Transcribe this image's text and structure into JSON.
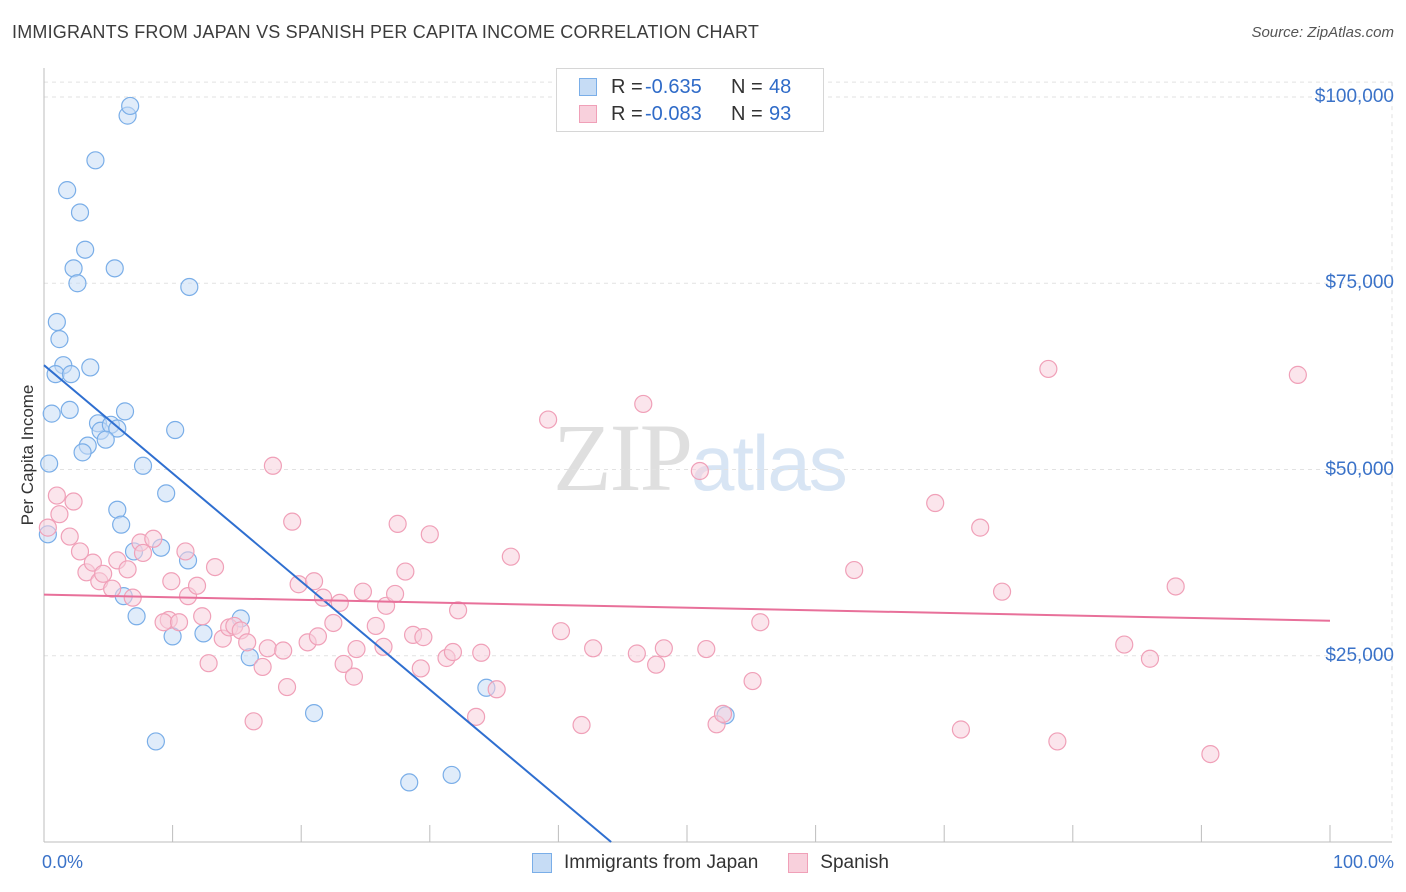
{
  "title": "IMMIGRANTS FROM JAPAN VS SPANISH PER CAPITA INCOME CORRELATION CHART",
  "source": "Source: ZipAtlas.com",
  "watermark": {
    "zip": "ZIP",
    "atlas": "atlas"
  },
  "legend": {
    "rows": [
      {
        "r_label": "R =",
        "r_value": "-0.635",
        "n_label": "N =",
        "n_value": "48"
      },
      {
        "r_label": "R =",
        "r_value": "-0.083",
        "n_label": "N =",
        "n_value": "93"
      }
    ]
  },
  "colors": {
    "japan": "#7aaee8",
    "japan_fill": "#c6dcf5",
    "japan_line": "#2f6fd0",
    "spanish": "#f0a0b8",
    "spanish_fill": "#f8d0dc",
    "spanish_line": "#e8709a",
    "grid": "#e2e2e2",
    "axis_text": "#3a72c8"
  },
  "chart_data": {
    "type": "scatter",
    "xlabel": "",
    "ylabel": "Per Capita Income",
    "xlim": [
      0,
      100
    ],
    "ylim": [
      0,
      102000
    ],
    "x_tick_labels": [
      "0.0%",
      "100.0%"
    ],
    "y_ticks": [
      25000,
      50000,
      75000,
      100000
    ],
    "y_tick_labels": [
      "$25,000",
      "$50,000",
      "$75,000",
      "$100,000"
    ],
    "grid": true,
    "legend_position": "top-center",
    "series": [
      {
        "name": "Immigrants from Japan",
        "color": "#7aaee8",
        "trend": {
          "x": [
            0.0,
            44.1
          ],
          "y": [
            64000,
            0
          ]
        },
        "points": [
          {
            "x": 6.5,
            "y": 97500
          },
          {
            "x": 6.7,
            "y": 98800
          },
          {
            "x": 4.0,
            "y": 91500
          },
          {
            "x": 1.8,
            "y": 87500
          },
          {
            "x": 2.8,
            "y": 84500
          },
          {
            "x": 3.2,
            "y": 79500
          },
          {
            "x": 2.3,
            "y": 77000
          },
          {
            "x": 5.5,
            "y": 77000
          },
          {
            "x": 2.6,
            "y": 75000
          },
          {
            "x": 11.3,
            "y": 74500
          },
          {
            "x": 1.0,
            "y": 69800
          },
          {
            "x": 1.2,
            "y": 67500
          },
          {
            "x": 1.5,
            "y": 64000
          },
          {
            "x": 3.6,
            "y": 63700
          },
          {
            "x": 0.9,
            "y": 62800
          },
          {
            "x": 2.1,
            "y": 62800
          },
          {
            "x": 0.6,
            "y": 57500
          },
          {
            "x": 2.0,
            "y": 58000
          },
          {
            "x": 6.3,
            "y": 57800
          },
          {
            "x": 4.2,
            "y": 56200
          },
          {
            "x": 4.4,
            "y": 55200
          },
          {
            "x": 5.2,
            "y": 56000
          },
          {
            "x": 5.7,
            "y": 55500
          },
          {
            "x": 10.2,
            "y": 55300
          },
          {
            "x": 3.4,
            "y": 53200
          },
          {
            "x": 4.8,
            "y": 54000
          },
          {
            "x": 3.0,
            "y": 52300
          },
          {
            "x": 0.4,
            "y": 50800
          },
          {
            "x": 7.7,
            "y": 50500
          },
          {
            "x": 9.5,
            "y": 46800
          },
          {
            "x": 5.7,
            "y": 44600
          },
          {
            "x": 6.0,
            "y": 42600
          },
          {
            "x": 0.3,
            "y": 41300
          },
          {
            "x": 7.0,
            "y": 39000
          },
          {
            "x": 9.1,
            "y": 39500
          },
          {
            "x": 11.2,
            "y": 37800
          },
          {
            "x": 6.2,
            "y": 33000
          },
          {
            "x": 7.2,
            "y": 30300
          },
          {
            "x": 15.3,
            "y": 30000
          },
          {
            "x": 10.0,
            "y": 27600
          },
          {
            "x": 12.4,
            "y": 28000
          },
          {
            "x": 16.0,
            "y": 24800
          },
          {
            "x": 21.0,
            "y": 17300
          },
          {
            "x": 34.4,
            "y": 20700
          },
          {
            "x": 8.7,
            "y": 13500
          },
          {
            "x": 28.4,
            "y": 8000
          },
          {
            "x": 31.7,
            "y": 9000
          },
          {
            "x": 53.0,
            "y": 17000
          }
        ]
      },
      {
        "name": "Spanish",
        "color": "#f0a0b8",
        "trend": {
          "x": [
            0.0,
            100.0
          ],
          "y": [
            33200,
            29700
          ]
        },
        "points": [
          {
            "x": 0.3,
            "y": 42200
          },
          {
            "x": 1.0,
            "y": 46500
          },
          {
            "x": 1.2,
            "y": 44000
          },
          {
            "x": 2.3,
            "y": 45700
          },
          {
            "x": 2.0,
            "y": 41000
          },
          {
            "x": 2.8,
            "y": 39000
          },
          {
            "x": 3.3,
            "y": 36200
          },
          {
            "x": 3.8,
            "y": 37500
          },
          {
            "x": 4.3,
            "y": 35000
          },
          {
            "x": 4.6,
            "y": 36000
          },
          {
            "x": 5.3,
            "y": 34000
          },
          {
            "x": 5.7,
            "y": 37800
          },
          {
            "x": 6.5,
            "y": 36600
          },
          {
            "x": 6.9,
            "y": 32800
          },
          {
            "x": 7.5,
            "y": 40200
          },
          {
            "x": 7.7,
            "y": 38800
          },
          {
            "x": 8.5,
            "y": 40700
          },
          {
            "x": 9.7,
            "y": 29800
          },
          {
            "x": 9.3,
            "y": 29500
          },
          {
            "x": 9.9,
            "y": 35000
          },
          {
            "x": 10.5,
            "y": 29500
          },
          {
            "x": 11.0,
            "y": 39000
          },
          {
            "x": 11.2,
            "y": 33000
          },
          {
            "x": 11.9,
            "y": 34400
          },
          {
            "x": 12.3,
            "y": 30300
          },
          {
            "x": 12.8,
            "y": 24000
          },
          {
            "x": 13.3,
            "y": 36900
          },
          {
            "x": 13.9,
            "y": 27300
          },
          {
            "x": 14.4,
            "y": 28800
          },
          {
            "x": 14.8,
            "y": 29000
          },
          {
            "x": 15.3,
            "y": 28400
          },
          {
            "x": 15.8,
            "y": 26800
          },
          {
            "x": 16.3,
            "y": 16200
          },
          {
            "x": 17.0,
            "y": 23500
          },
          {
            "x": 17.4,
            "y": 26000
          },
          {
            "x": 17.8,
            "y": 50500
          },
          {
            "x": 18.6,
            "y": 25700
          },
          {
            "x": 18.9,
            "y": 20800
          },
          {
            "x": 19.3,
            "y": 43000
          },
          {
            "x": 19.8,
            "y": 34600
          },
          {
            "x": 20.5,
            "y": 26800
          },
          {
            "x": 21.0,
            "y": 35000
          },
          {
            "x": 21.3,
            "y": 27600
          },
          {
            "x": 21.7,
            "y": 32800
          },
          {
            "x": 22.5,
            "y": 29400
          },
          {
            "x": 23.0,
            "y": 32100
          },
          {
            "x": 23.3,
            "y": 23900
          },
          {
            "x": 24.1,
            "y": 22200
          },
          {
            "x": 24.3,
            "y": 25900
          },
          {
            "x": 24.8,
            "y": 33600
          },
          {
            "x": 25.8,
            "y": 29000
          },
          {
            "x": 26.4,
            "y": 26200
          },
          {
            "x": 26.6,
            "y": 31700
          },
          {
            "x": 27.3,
            "y": 33300
          },
          {
            "x": 27.5,
            "y": 42700
          },
          {
            "x": 28.1,
            "y": 36300
          },
          {
            "x": 28.7,
            "y": 27800
          },
          {
            "x": 29.3,
            "y": 23300
          },
          {
            "x": 29.5,
            "y": 27500
          },
          {
            "x": 30.0,
            "y": 41300
          },
          {
            "x": 31.3,
            "y": 24700
          },
          {
            "x": 31.8,
            "y": 25500
          },
          {
            "x": 32.2,
            "y": 31100
          },
          {
            "x": 33.6,
            "y": 16800
          },
          {
            "x": 34.0,
            "y": 25400
          },
          {
            "x": 35.2,
            "y": 20500
          },
          {
            "x": 36.3,
            "y": 38300
          },
          {
            "x": 39.2,
            "y": 56700
          },
          {
            "x": 40.2,
            "y": 28300
          },
          {
            "x": 41.8,
            "y": 15700
          },
          {
            "x": 42.7,
            "y": 26000
          },
          {
            "x": 46.1,
            "y": 25300
          },
          {
            "x": 46.6,
            "y": 58800
          },
          {
            "x": 47.6,
            "y": 23800
          },
          {
            "x": 48.2,
            "y": 26000
          },
          {
            "x": 51.0,
            "y": 49800
          },
          {
            "x": 51.5,
            "y": 25900
          },
          {
            "x": 52.3,
            "y": 15800
          },
          {
            "x": 52.8,
            "y": 17200
          },
          {
            "x": 55.1,
            "y": 21600
          },
          {
            "x": 55.7,
            "y": 29500
          },
          {
            "x": 63.0,
            "y": 36500
          },
          {
            "x": 69.3,
            "y": 45500
          },
          {
            "x": 71.3,
            "y": 15100
          },
          {
            "x": 72.8,
            "y": 42200
          },
          {
            "x": 74.5,
            "y": 33600
          },
          {
            "x": 78.1,
            "y": 63500
          },
          {
            "x": 78.8,
            "y": 13500
          },
          {
            "x": 84.0,
            "y": 26500
          },
          {
            "x": 86.0,
            "y": 24600
          },
          {
            "x": 88.0,
            "y": 34300
          },
          {
            "x": 90.7,
            "y": 11800
          },
          {
            "x": 97.5,
            "y": 62700
          }
        ]
      }
    ]
  }
}
